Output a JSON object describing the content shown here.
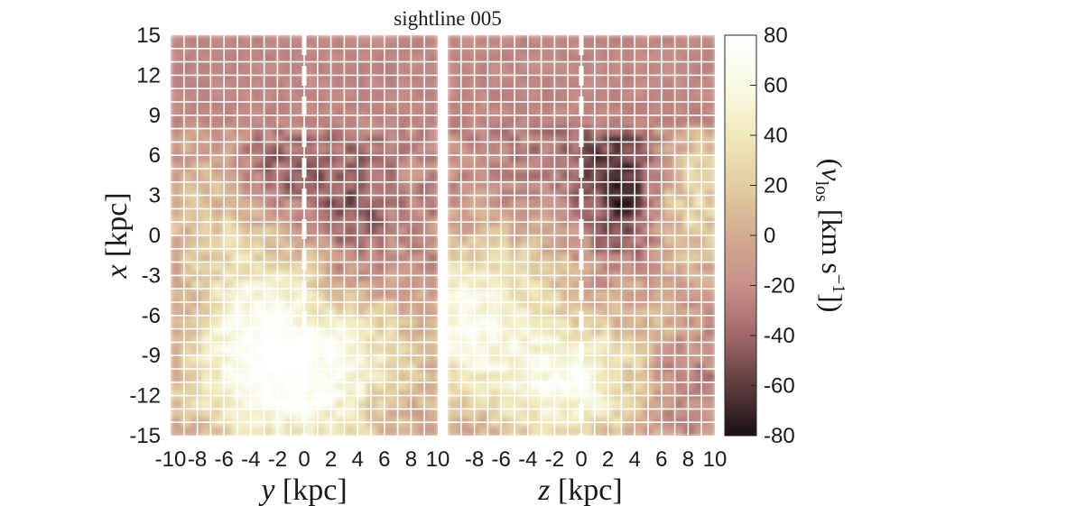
{
  "chart_data": {
    "type": "heatmap",
    "title": "sightline 005",
    "colorbar": {
      "label_symbol": "v",
      "label_sub": "los",
      "label_units_prefix": "[km s",
      "label_units_sup": "−1",
      "label_units_suffix": "])",
      "label_open": "(",
      "range": [
        -80,
        80
      ],
      "ticks": [
        "80",
        "60",
        "40",
        "20",
        "0",
        "-20",
        "-40",
        "-60",
        "-80"
      ],
      "colormap": [
        "#1c0f12",
        "#5e3c3e",
        "#a0686a",
        "#c8908a",
        "#d2aa90",
        "#e2cea2",
        "#f0e8bc",
        "#fafae6",
        "#ffffff"
      ]
    },
    "panels": [
      {
        "xlabel_var": "y",
        "xlabel_unit": "[kpc]",
        "xlim": [
          -10,
          10
        ],
        "xticks": [
          "-10",
          "-8",
          "-6",
          "-4",
          "-2",
          "0",
          "2",
          "4",
          "6",
          "8",
          "10"
        ],
        "sightline_x": 0
      },
      {
        "xlabel_var": "z",
        "xlabel_unit": "[kpc]",
        "xlim": [
          -10,
          10
        ],
        "xticks": [
          "-8",
          "-6",
          "-4",
          "-2",
          "0",
          "2",
          "4",
          "6",
          "8",
          "10"
        ],
        "sightline_x": 0
      }
    ],
    "ylabel_var": "x",
    "ylabel_unit": "[kpc]",
    "ylim": [
      -15,
      15
    ],
    "yticks": [
      "15",
      "12",
      "9",
      "6",
      "3",
      "0",
      "-3",
      "-6",
      "-9",
      "-12",
      "-15"
    ],
    "grid": true
  }
}
